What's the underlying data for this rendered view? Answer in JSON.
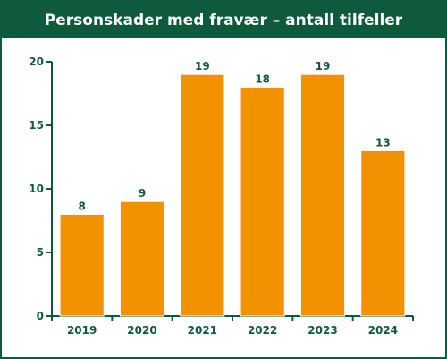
{
  "chart_data": {
    "type": "bar",
    "title": "Personskader med fravær – antall tilfeller",
    "categories": [
      "2019",
      "2020",
      "2021",
      "2022",
      "2023",
      "2024"
    ],
    "values": [
      8,
      9,
      19,
      18,
      19,
      13
    ],
    "ylim": [
      0,
      20
    ],
    "yticks": [
      0,
      5,
      10,
      15,
      20
    ],
    "grid": false,
    "colors": {
      "bar": "#f39200",
      "bar_edge": "#ffffff",
      "axis": "#0f5a3c",
      "header_bg": "#0f5a3c",
      "header_text": "#ffffff"
    }
  }
}
